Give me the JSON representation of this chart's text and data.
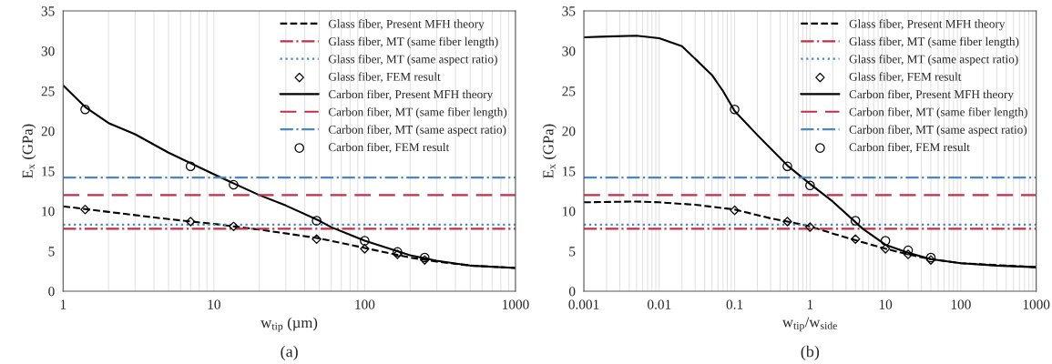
{
  "chart_data": [
    {
      "type": "line",
      "xlabel": "w$_{tip}$ (µm)",
      "ylabel": "E$_{x}$ (GPa)",
      "log": "x",
      "xlim": [
        1,
        1000
      ],
      "xticks": [
        1,
        10,
        100,
        1000
      ],
      "ylim": [
        0,
        35
      ],
      "yticks": [
        0,
        5,
        10,
        15,
        20,
        25,
        30,
        35
      ],
      "grid": "x",
      "legend": "top right",
      "annotations": [
        "(a)"
      ],
      "series": [
        {
          "name": "Glass fiber, Present MFH theory",
          "type": "line",
          "line_style": "dashed",
          "color": "#000000",
          "x": [
            1,
            2,
            5,
            10,
            20,
            50,
            100,
            200,
            300,
            500,
            1000
          ],
          "values": [
            10.6,
            9.9,
            9.0,
            8.4,
            7.7,
            6.6,
            5.4,
            4.2,
            3.7,
            3.2,
            2.9
          ]
        },
        {
          "name": "Glass fiber, MT (same fiber length)",
          "type": "line",
          "line_style": "dashdot",
          "color": "#c0304a",
          "x": [
            1,
            1000
          ],
          "values": [
            7.8,
            7.8
          ]
        },
        {
          "name": "Glass fiber, MT (same aspect ratio)",
          "type": "line",
          "line_style": "dotted",
          "color": "#4a86c0",
          "x": [
            1,
            1000
          ],
          "values": [
            8.3,
            8.3
          ]
        },
        {
          "name": "Glass fiber, FEM result",
          "type": "scatter",
          "marker": "diamond",
          "color": "#000000",
          "x": [
            1.4,
            7,
            13.5,
            48,
            100,
            165,
            250
          ],
          "values": [
            10.2,
            8.7,
            8.1,
            6.5,
            5.3,
            4.6,
            3.9
          ]
        },
        {
          "name": "Carbon fiber, Present MFH theory",
          "type": "line",
          "line_style": "solid",
          "color": "#000000",
          "x": [
            1,
            1.4,
            2,
            3,
            5,
            10,
            20,
            30,
            50,
            60,
            100,
            200,
            300,
            500,
            1000
          ],
          "values": [
            25.7,
            23,
            21,
            19.6,
            17.3,
            14.6,
            12,
            10.7,
            8.8,
            8.0,
            6.3,
            4.5,
            3.8,
            3.2,
            2.9
          ]
        },
        {
          "name": "Carbon fiber, MT (same fiber length)",
          "type": "line",
          "line_style": "dashed",
          "color": "#c0304a",
          "x": [
            1,
            1000
          ],
          "values": [
            12.0,
            12.0
          ]
        },
        {
          "name": "Carbon fiber, MT (same aspect ratio)",
          "type": "line",
          "line_style": "dashdot",
          "color": "#4a86c0",
          "x": [
            1,
            1000
          ],
          "values": [
            14.2,
            14.2
          ]
        },
        {
          "name": "Carbon fiber, FEM result",
          "type": "scatter",
          "marker": "circle",
          "color": "#000000",
          "x": [
            1.4,
            7,
            13.5,
            48,
            100,
            165,
            250
          ],
          "values": [
            22.7,
            15.6,
            13.3,
            8.8,
            6.3,
            4.9,
            4.2
          ]
        }
      ]
    },
    {
      "type": "line",
      "xlabel": "w$_{tip}$/w$_{side}$",
      "ylabel": "E$_{x}$ (GPa)",
      "log": "x",
      "xlim": [
        0.001,
        1000
      ],
      "xticks": [
        0.001,
        0.01,
        0.1,
        1,
        10,
        100,
        1000
      ],
      "ylim": [
        0,
        35
      ],
      "yticks": [
        0,
        5,
        10,
        15,
        20,
        25,
        30,
        35
      ],
      "grid": "x",
      "legend": "top right",
      "annotations": [
        "(b)"
      ],
      "series": [
        {
          "name": "Glass fiber, Present MFH theory",
          "type": "line",
          "line_style": "dashed",
          "color": "#000000",
          "x": [
            0.001,
            0.005,
            0.01,
            0.03,
            0.1,
            0.3,
            0.5,
            1,
            2,
            5,
            10,
            20,
            40,
            100,
            1000
          ],
          "values": [
            11.1,
            11.2,
            11.1,
            10.8,
            10.2,
            9.1,
            8.7,
            8.1,
            7.2,
            6.1,
            5.3,
            4.6,
            4.0,
            3.5,
            3.0
          ]
        },
        {
          "name": "Glass fiber, MT (same fiber length)",
          "type": "line",
          "line_style": "dashdot",
          "color": "#c0304a",
          "x": [
            0.001,
            1000
          ],
          "values": [
            7.8,
            7.8
          ]
        },
        {
          "name": "Glass fiber, MT (same aspect ratio)",
          "type": "line",
          "line_style": "dotted",
          "color": "#4a86c0",
          "x": [
            0.001,
            1000
          ],
          "values": [
            8.3,
            8.3
          ]
        },
        {
          "name": "Glass fiber, FEM result",
          "type": "scatter",
          "marker": "diamond",
          "color": "#000000",
          "x": [
            0.1,
            0.5,
            1,
            4,
            10,
            20,
            40
          ],
          "values": [
            10.1,
            8.7,
            8.0,
            6.5,
            5.3,
            4.6,
            3.9
          ]
        },
        {
          "name": "Carbon fiber, Present MFH theory",
          "type": "line",
          "line_style": "solid",
          "color": "#000000",
          "x": [
            0.001,
            0.002,
            0.005,
            0.01,
            0.02,
            0.05,
            0.07,
            0.1,
            0.2,
            0.5,
            1,
            2,
            5,
            10,
            20,
            40,
            100,
            300,
            1000
          ],
          "values": [
            31.7,
            31.8,
            31.9,
            31.6,
            30.6,
            27,
            25,
            22.5,
            19.5,
            15.7,
            13.4,
            11.2,
            7.8,
            5.8,
            4.8,
            4.0,
            3.5,
            3.2,
            3.0
          ]
        },
        {
          "name": "Carbon fiber, MT (same fiber length)",
          "type": "line",
          "line_style": "dashed",
          "color": "#c0304a",
          "x": [
            0.001,
            1000
          ],
          "values": [
            12.0,
            12.0
          ]
        },
        {
          "name": "Carbon fiber, MT (same aspect ratio)",
          "type": "line",
          "line_style": "dashdot",
          "color": "#4a86c0",
          "x": [
            0.001,
            1000
          ],
          "values": [
            14.2,
            14.2
          ]
        },
        {
          "name": "Carbon fiber, FEM result",
          "type": "scatter",
          "marker": "circle",
          "color": "#000000",
          "x": [
            0.1,
            0.5,
            1,
            4,
            10,
            20,
            40
          ],
          "values": [
            22.7,
            15.6,
            13.2,
            8.8,
            6.3,
            5.1,
            4.2
          ]
        }
      ]
    }
  ]
}
